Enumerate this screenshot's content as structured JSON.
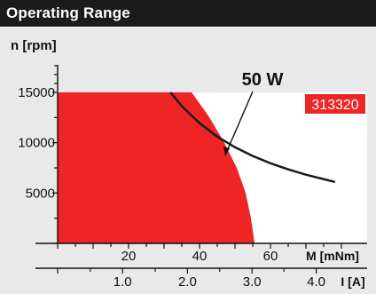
{
  "header": {
    "title": "Operating Range"
  },
  "chart_data": {
    "type": "area",
    "title": "Operating Range",
    "ylabel": "n [rpm]",
    "xlabel": "M [mNm]",
    "xlabel2": "I [A]",
    "xlim": [
      0,
      70
    ],
    "ylim": [
      0,
      15000
    ],
    "x_ticks": [
      20,
      40,
      60
    ],
    "y_ticks": [
      5000,
      10000,
      15000
    ],
    "x2_ticks": [
      {
        "label": "1.0",
        "x": 18.3
      },
      {
        "label": "2.0",
        "x": 36.6
      },
      {
        "label": "3.0",
        "x": 54.8
      },
      {
        "label": "4.0",
        "x": 72.9
      }
    ],
    "colors": {
      "operating_range": "#ee2524",
      "header": "#1b1b1b",
      "panel": "#e9e9e9",
      "curve": "#1a1a1a"
    },
    "boundary": [
      {
        "x": 37.8,
        "y": 15000
      },
      {
        "x": 42.8,
        "y": 12500
      },
      {
        "x": 47.0,
        "y": 10000
      },
      {
        "x": 50.5,
        "y": 7500
      },
      {
        "x": 53.0,
        "y": 5000
      },
      {
        "x": 54.5,
        "y": 2500
      },
      {
        "x": 55.5,
        "y": 0
      }
    ],
    "series": [
      {
        "name": "50 W",
        "x": [
          31.8,
          35,
          40,
          45,
          50,
          55,
          60,
          65,
          70,
          78.2
        ],
        "y": [
          15000,
          13640,
          11940,
          10610,
          9550,
          8680,
          7960,
          7350,
          6820,
          6100
        ]
      }
    ],
    "badge": "313320"
  }
}
